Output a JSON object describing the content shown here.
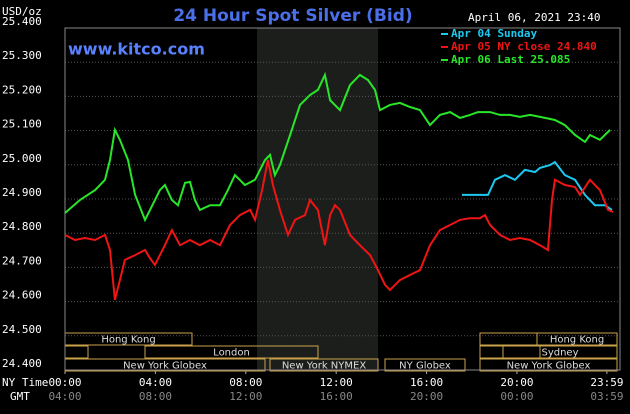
{
  "chart_data": {
    "type": "line",
    "title": "24 Hour Spot Silver (Bid)",
    "unit_label": "USD/oz",
    "timestamp": "April 06, 2021 23:40",
    "site": "www.kitco.com",
    "xlim": [
      0,
      24.56
    ],
    "ylim": [
      24.4,
      25.4
    ],
    "yticks": [
      {
        "value": 24.4,
        "label": "24.400"
      },
      {
        "value": 24.5,
        "label": "24.500"
      },
      {
        "value": 24.6,
        "label": "24.600"
      },
      {
        "value": 24.7,
        "label": "24.700"
      },
      {
        "value": 24.8,
        "label": "24.800"
      },
      {
        "value": 24.9,
        "label": "24.900"
      },
      {
        "value": 25.0,
        "label": "25.000"
      },
      {
        "value": 25.1,
        "label": "25.100"
      },
      {
        "value": 25.2,
        "label": "25.200"
      },
      {
        "value": 25.3,
        "label": "25.300"
      },
      {
        "value": 25.4,
        "label": "25.400"
      }
    ],
    "xticks": [
      {
        "value": 0,
        "label": "00:00"
      },
      {
        "value": 4,
        "label": "04:00"
      },
      {
        "value": 8,
        "label": "08:00"
      },
      {
        "value": 12,
        "label": "12:00"
      },
      {
        "value": 16,
        "label": "16:00"
      },
      {
        "value": 20,
        "label": "20:00"
      },
      {
        "value": 23.98,
        "label": "23:59"
      }
    ],
    "xticks2": [
      {
        "value": 0,
        "label": "04:00"
      },
      {
        "value": 4,
        "label": "08:00"
      },
      {
        "value": 8,
        "label": "12:00"
      },
      {
        "value": 12,
        "label": "16:00"
      },
      {
        "value": 16,
        "label": "20:00"
      },
      {
        "value": 20,
        "label": "00:00"
      },
      {
        "value": 23.98,
        "label": "03:59"
      }
    ],
    "x_axis_label": "NY Time",
    "x2_axis_label": "GMT",
    "grid": true,
    "sessions": [
      "Hong Kong",
      "London",
      "New York Globex",
      "New York NYMEX",
      "NY Globex",
      "Hong Kong",
      "Sydney",
      "New York Globex"
    ],
    "series": [
      {
        "name": "Apr 04 Sunday",
        "color": "#1ec8f0",
        "x": [
          17.57,
          18.72,
          19.03,
          19.47,
          19.91,
          20.35,
          20.8,
          21.02,
          21.46,
          21.68,
          22.12,
          22.57,
          23.01,
          23.45,
          23.89,
          24.2
        ],
        "values": [
          24.912,
          24.912,
          24.956,
          24.97,
          24.956,
          24.985,
          24.979,
          24.991,
          24.999,
          25.008,
          24.97,
          24.956,
          24.912,
          24.882,
          24.882,
          24.868
        ]
      },
      {
        "name": "Apr 05 NY close 24.840",
        "color": "#f01414",
        "x": [
          0,
          0.44,
          0.88,
          1.33,
          1.77,
          1.99,
          2.21,
          2.43,
          2.65,
          3.1,
          3.54,
          3.76,
          3.98,
          4.42,
          4.73,
          5.09,
          5.53,
          5.97,
          6.42,
          6.86,
          7.3,
          7.74,
          8.19,
          8.41,
          8.72,
          8.98,
          9.2,
          9.51,
          9.87,
          10.18,
          10.62,
          10.84,
          11.19,
          11.5,
          11.73,
          11.95,
          12.17,
          12.61,
          13.05,
          13.5,
          13.85,
          14.16,
          14.38,
          14.82,
          15.27,
          15.71,
          16.15,
          16.59,
          17.04,
          17.48,
          17.92,
          18.36,
          18.58,
          18.81,
          19.25,
          19.69,
          20.13,
          20.58,
          21.02,
          21.37,
          21.55,
          21.68,
          22.12,
          22.57,
          22.79,
          23.23,
          23.67,
          24.03,
          24.25
        ],
        "values": [
          24.795,
          24.78,
          24.786,
          24.78,
          24.795,
          24.751,
          24.605,
          24.663,
          24.722,
          24.736,
          24.751,
          24.727,
          24.707,
          24.765,
          24.809,
          24.765,
          24.78,
          24.765,
          24.78,
          24.765,
          24.824,
          24.853,
          24.868,
          24.839,
          24.926,
          25.014,
          24.941,
          24.868,
          24.795,
          24.839,
          24.853,
          24.897,
          24.868,
          24.765,
          24.853,
          24.882,
          24.868,
          24.795,
          24.765,
          24.736,
          24.692,
          24.649,
          24.634,
          24.663,
          24.678,
          24.692,
          24.765,
          24.809,
          24.824,
          24.839,
          24.844,
          24.844,
          24.853,
          24.824,
          24.795,
          24.78,
          24.786,
          24.78,
          24.765,
          24.751,
          24.897,
          24.956,
          24.941,
          24.935,
          24.912,
          24.956,
          24.926,
          24.868,
          24.862
        ]
      },
      {
        "name": "Apr 06 Last 25.085",
        "color": "#28e628",
        "x": [
          0,
          0.66,
          1.33,
          1.77,
          1.99,
          2.21,
          2.43,
          2.79,
          3.1,
          3.54,
          3.76,
          4.2,
          4.42,
          4.73,
          5.0,
          5.31,
          5.53,
          5.75,
          5.97,
          6.42,
          6.86,
          7.21,
          7.52,
          7.96,
          8.41,
          8.85,
          9.07,
          9.29,
          9.51,
          9.96,
          10.4,
          10.84,
          11.19,
          11.5,
          11.73,
          12.17,
          12.61,
          13.05,
          13.41,
          13.72,
          13.94,
          14.38,
          14.82,
          15.27,
          15.71,
          16.15,
          16.59,
          17.04,
          17.48,
          17.92,
          18.27,
          18.81,
          19.25,
          19.69,
          20.13,
          20.58,
          21.24,
          21.68,
          22.12,
          22.57,
          23.01,
          23.23,
          23.67,
          24.12
        ],
        "values": [
          24.859,
          24.897,
          24.926,
          24.956,
          25.014,
          25.102,
          25.073,
          25.014,
          24.912,
          24.839,
          24.868,
          24.926,
          24.941,
          24.897,
          24.882,
          24.947,
          24.95,
          24.897,
          24.868,
          24.882,
          24.882,
          24.926,
          24.97,
          24.941,
          24.956,
          25.014,
          25.029,
          24.97,
          24.999,
          25.087,
          25.175,
          25.204,
          25.219,
          25.263,
          25.189,
          25.16,
          25.233,
          25.263,
          25.248,
          25.219,
          25.16,
          25.175,
          25.181,
          25.169,
          25.16,
          25.116,
          25.146,
          25.154,
          25.137,
          25.146,
          25.154,
          25.154,
          25.146,
          25.146,
          25.14,
          25.146,
          25.137,
          25.131,
          25.116,
          25.087,
          25.067,
          25.087,
          25.073,
          25.102
        ]
      }
    ]
  }
}
